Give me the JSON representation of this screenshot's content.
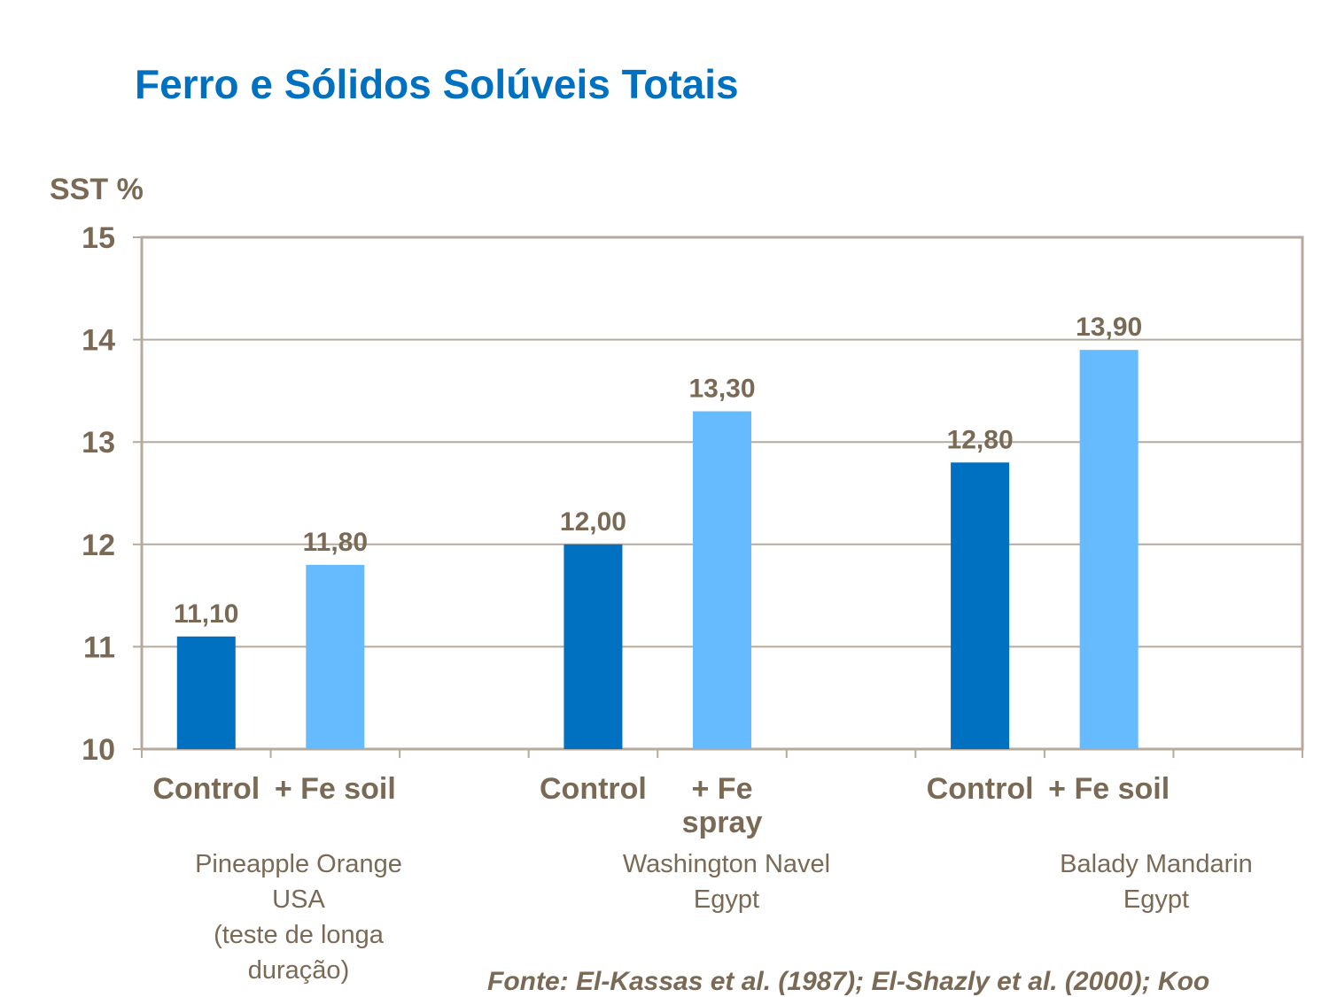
{
  "chart_data": {
    "type": "bar",
    "title": "Ferro e Sólidos Solúveis Totais",
    "ylabel": "SST %",
    "ylim": [
      10,
      15
    ],
    "yticks": [
      10,
      11,
      12,
      13,
      14,
      15
    ],
    "grid": true,
    "categories": [
      "Control",
      "+ Fe soil",
      "",
      "Control",
      "+ Fe spray",
      "",
      "Control",
      "+ Fe soil",
      ""
    ],
    "values": [
      11.1,
      11.8,
      null,
      12.0,
      13.3,
      null,
      12.8,
      13.9,
      null
    ],
    "data_labels": [
      "11,10",
      "11,80",
      "",
      "12,00",
      "13,30",
      "",
      "12,80",
      "13,90",
      ""
    ],
    "bar_colors": [
      "#0070c0",
      "#66bbff",
      "",
      "#0070c0",
      "#66bbff",
      "",
      "#0070c0",
      "#66bbff",
      ""
    ],
    "groups": [
      {
        "label": "Pineapple Orange\nUSA\n(teste de longa\nduração)"
      },
      {
        "label": "Washington Navel\nEgypt"
      },
      {
        "label": "Balady Mandarin\nEgypt"
      }
    ],
    "source": "Fonte: El-Kassas et al. (1987); El-Shazly et al. (2000); Koo"
  },
  "colors": {
    "title": "#0070c0",
    "text": "#7a6a55",
    "axis": "#b5aa9c"
  }
}
